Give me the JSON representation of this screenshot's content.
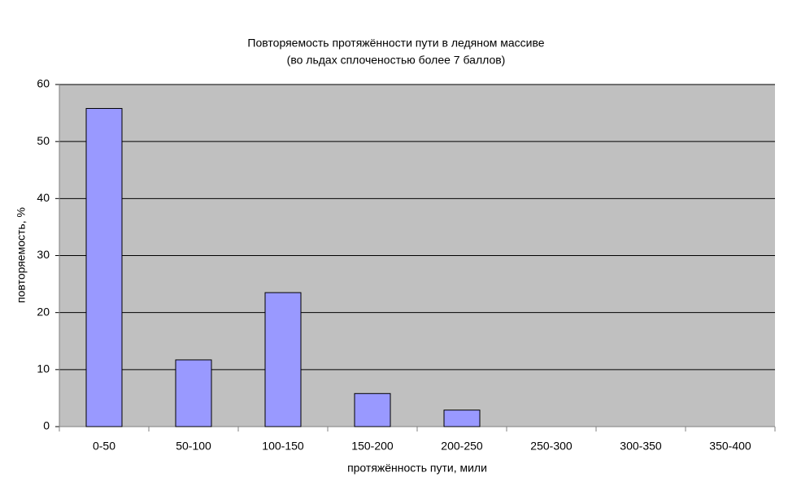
{
  "chart_data": {
    "type": "bar",
    "title": "Повторяемость протяжённости пути в ледяном массиве",
    "subtitle": "(во льдах сплоченостью более 7 баллов)",
    "x_label": "протяжённость пути, мили",
    "y_label": "повторяемость, %",
    "categories": [
      "0-50",
      "50-100",
      "100-150",
      "150-200",
      "200-250",
      "250-300",
      "300-350",
      "350-400"
    ],
    "values": [
      55.8,
      11.7,
      23.5,
      5.8,
      2.9,
      0,
      0,
      0
    ],
    "color": "#9999ff",
    "ylim": [
      0,
      60
    ],
    "yticks": [
      0,
      10,
      20,
      30,
      40,
      50,
      60
    ],
    "grid": true
  }
}
